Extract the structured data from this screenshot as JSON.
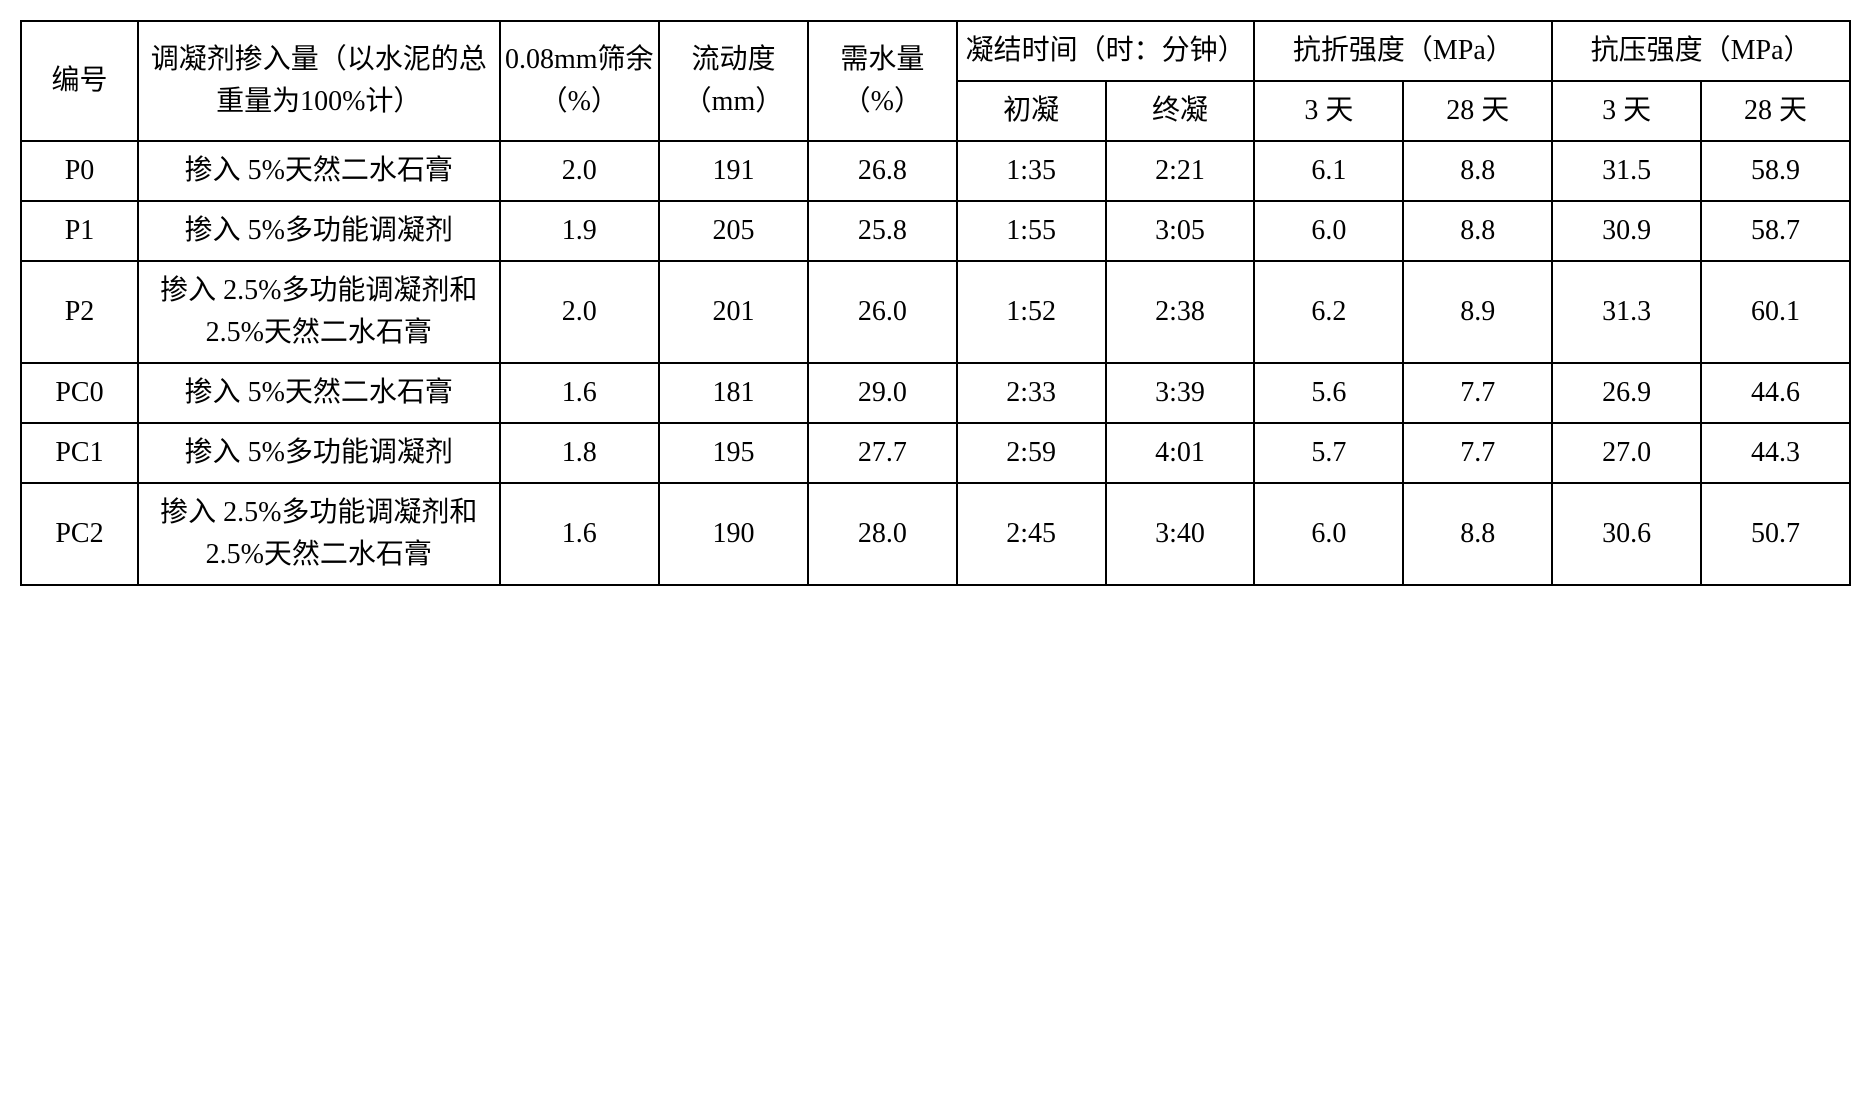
{
  "styling": {
    "type": "table",
    "border_color": "#000000",
    "border_width": 2,
    "background_color": "#ffffff",
    "text_color": "#000000",
    "font_family": "SimSun",
    "cell_font_size": 28,
    "header_font_size": 28,
    "text_align": "center",
    "vertical_align": "middle",
    "line_height": 1.5,
    "column_widths_pct": [
      5.5,
      17,
      7.5,
      7,
      7,
      7,
      7,
      7,
      7,
      7,
      7
    ]
  },
  "headers": {
    "id": "编号",
    "additive": "调凝剂掺入量（以水泥的总重量为100%计）",
    "sieve_residue": "0.08mm筛余（%）",
    "flowability": "流动度（mm）",
    "water_demand": "需水量（%）",
    "setting_time": "凝结时间（时：分钟）",
    "flexural_strength": "抗折强度（MPa）",
    "compressive_strength": "抗压强度（MPa）",
    "initial_set": "初凝",
    "final_set": "终凝",
    "day3": "3 天",
    "day28": "28 天"
  },
  "rows": [
    {
      "id": "P0",
      "additive": "掺入 5%天然二水石膏",
      "sieve": "2.0",
      "flow": "191",
      "water": "26.8",
      "initial": "1:35",
      "final": "2:21",
      "flex3": "6.1",
      "flex28": "8.8",
      "comp3": "31.5",
      "comp28": "58.9"
    },
    {
      "id": "P1",
      "additive": "掺入 5%多功能调凝剂",
      "sieve": "1.9",
      "flow": "205",
      "water": "25.8",
      "initial": "1:55",
      "final": "3:05",
      "flex3": "6.0",
      "flex28": "8.8",
      "comp3": "30.9",
      "comp28": "58.7"
    },
    {
      "id": "P2",
      "additive": "掺入 2.5%多功能调凝剂和 2.5%天然二水石膏",
      "sieve": "2.0",
      "flow": "201",
      "water": "26.0",
      "initial": "1:52",
      "final": "2:38",
      "flex3": "6.2",
      "flex28": "8.9",
      "comp3": "31.3",
      "comp28": "60.1"
    },
    {
      "id": "PC0",
      "additive": "掺入 5%天然二水石膏",
      "sieve": "1.6",
      "flow": "181",
      "water": "29.0",
      "initial": "2:33",
      "final": "3:39",
      "flex3": "5.6",
      "flex28": "7.7",
      "comp3": "26.9",
      "comp28": "44.6"
    },
    {
      "id": "PC1",
      "additive": "掺入 5%多功能调凝剂",
      "sieve": "1.8",
      "flow": "195",
      "water": "27.7",
      "initial": "2:59",
      "final": "4:01",
      "flex3": "5.7",
      "flex28": "7.7",
      "comp3": "27.0",
      "comp28": "44.3"
    },
    {
      "id": "PC2",
      "additive": "掺入 2.5%多功能调凝剂和 2.5%天然二水石膏",
      "sieve": "1.6",
      "flow": "190",
      "water": "28.0",
      "initial": "2:45",
      "final": "3:40",
      "flex3": "6.0",
      "flex28": "8.8",
      "comp3": "30.6",
      "comp28": "50.7"
    }
  ]
}
